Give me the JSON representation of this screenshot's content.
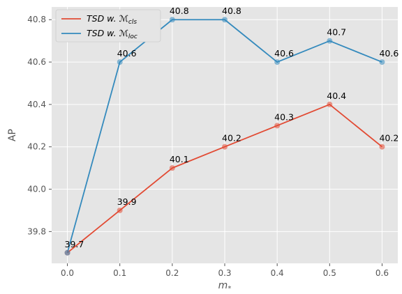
{
  "chart_data": {
    "type": "line",
    "xlabel": "m",
    "xlabel_sub": "*",
    "ylabel": "AP",
    "x": [
      0.0,
      0.1,
      0.2,
      0.3,
      0.4,
      0.5,
      0.6
    ],
    "xlim": [
      -0.03,
      0.63
    ],
    "ylim": [
      39.65,
      40.86
    ],
    "xticks": [
      "0.0",
      "0.1",
      "0.2",
      "0.3",
      "0.4",
      "0.5",
      "0.6"
    ],
    "yticks": [
      "39.8",
      "40.0",
      "40.2",
      "40.4",
      "40.6",
      "40.8"
    ],
    "ytick_values": [
      39.8,
      40.0,
      40.2,
      40.4,
      40.6,
      40.8
    ],
    "grid": true,
    "legend_position": "top-left",
    "series": [
      {
        "name": "TSD w. ",
        "name_math": "ℳ",
        "name_sub": "cls",
        "color": "#E24A33",
        "values": [
          39.7,
          39.9,
          40.1,
          40.2,
          40.3,
          40.4,
          40.2
        ],
        "labels": [
          "39.7",
          "39.9",
          "40.1",
          "40.2",
          "40.3",
          "40.4",
          "40.2"
        ]
      },
      {
        "name": "TSD w. ",
        "name_math": "ℳ",
        "name_sub": "loc",
        "color": "#348ABD",
        "values": [
          39.7,
          40.6,
          40.8,
          40.8,
          40.6,
          40.7,
          40.6
        ],
        "labels": [
          "",
          "40.6",
          "40.8",
          "40.8",
          "40.6",
          "40.7",
          "40.6"
        ]
      }
    ],
    "colors": {
      "plot_background": "#E5E5E5",
      "grid": "#FFFFFF",
      "overlap_marker": "#7A6B7E"
    }
  }
}
